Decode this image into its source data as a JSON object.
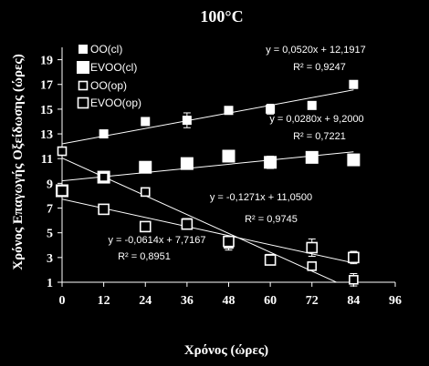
{
  "chart_data": {
    "type": "scatter",
    "title": "100°C",
    "xlabel": "Χρόνος (ώρες)",
    "ylabel": "Χρόνος Επαγωγής Οξείδωσης (ώρες)",
    "xlim": [
      0,
      96
    ],
    "ylim": [
      1,
      20
    ],
    "x_ticks": [
      "0",
      "12",
      "24",
      "36",
      "48",
      "60",
      "72",
      "84",
      "96"
    ],
    "y_ticks": [
      "1",
      "3",
      "5",
      "7",
      "9",
      "11",
      "13",
      "15",
      "17",
      "19"
    ],
    "grid": false,
    "legend_position": "top-left",
    "colors": {
      "background": "#000000",
      "foreground": "#ffffff"
    },
    "series": [
      {
        "name": "OO(cl)",
        "marker": "filled-square-small",
        "x": [
          0,
          12,
          24,
          36,
          48,
          60,
          72,
          84
        ],
        "y": [
          11.6,
          13.0,
          14.0,
          14.1,
          14.9,
          15.0,
          15.3,
          17.0
        ],
        "err": [
          0,
          0,
          0,
          0.6,
          0,
          0.4,
          0,
          0
        ],
        "trend": {
          "slope": 0.052,
          "intercept": 12.1917,
          "x_range": [
            0,
            84
          ]
        },
        "equation": "y = 0,0520x + 12,1917",
        "r2": "R² = 0,9247"
      },
      {
        "name": "EVOO(cl)",
        "marker": "filled-square-large",
        "x": [
          0,
          12,
          24,
          36,
          48,
          60,
          72,
          84
        ],
        "y": [
          8.4,
          9.5,
          10.3,
          10.6,
          11.2,
          10.7,
          11.1,
          10.9
        ],
        "err": [
          0,
          0,
          0,
          0,
          0,
          0.5,
          0,
          0
        ],
        "trend": {
          "slope": 0.028,
          "intercept": 9.2,
          "x_range": [
            0,
            84
          ]
        },
        "equation": "y = 0,0280x + 9,2000",
        "r2": "R² = 0,7221"
      },
      {
        "name": "OO(op)",
        "marker": "open-square-small",
        "x": [
          0,
          12,
          24,
          36,
          48,
          60,
          72,
          84
        ],
        "y": [
          11.6,
          9.5,
          8.3,
          5.8,
          4.1,
          2.9,
          2.3,
          1.2
        ],
        "err": [
          0,
          0,
          0,
          0.3,
          0.5,
          0.3,
          0,
          0.5
        ],
        "trend": {
          "slope": -0.1271,
          "intercept": 11.05,
          "x_range": [
            0,
            84
          ]
        },
        "equation": "y = -0,1271x + 11,0500",
        "r2": "R² = 0,9745"
      },
      {
        "name": "EVOO(op)",
        "marker": "open-square-large",
        "x": [
          0,
          12,
          24,
          36,
          48,
          60,
          72,
          84
        ],
        "y": [
          8.4,
          6.9,
          5.5,
          5.7,
          4.3,
          2.8,
          3.8,
          3.0
        ],
        "err": [
          0,
          0,
          0,
          0,
          0.4,
          0,
          0.7,
          0.5
        ],
        "trend": {
          "slope": -0.0614,
          "intercept": 7.7167,
          "x_range": [
            0,
            84
          ]
        },
        "equation": "y = -0,0614x + 7,7167",
        "r2": "R² = 0,8951"
      }
    ]
  }
}
